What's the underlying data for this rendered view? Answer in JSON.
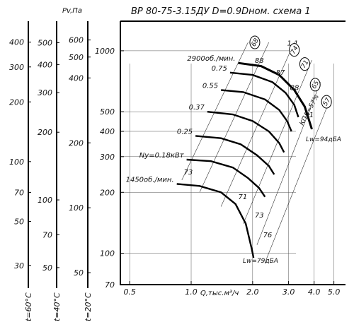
{
  "chart_data": {
    "type": "line",
    "title": "ВР 80-75-3.15ДУ D=0.9Dном. схема 1",
    "xlabel": "Q,тыс.м³/ч",
    "ylabel": "Pv,Па",
    "x_scale": "log",
    "y_scale": "log",
    "xlim": [
      0.45,
      5.7
    ],
    "ylim": [
      70,
      1400
    ],
    "x_ticks": [
      "0.5",
      "1.0",
      "2.0",
      "3.0",
      "4.0",
      "5.0"
    ],
    "y_ticks": [
      "70",
      "100",
      "200",
      "300",
      "400",
      "500",
      "1000"
    ],
    "side_axes": [
      {
        "label": "t=60°C",
        "ticks": [
          "30",
          "50",
          "70",
          "100",
          "200",
          "300",
          "400"
        ]
      },
      {
        "label": "t=40°C",
        "ticks": [
          "50",
          "70",
          "100",
          "200",
          "300",
          "400",
          "500"
        ]
      },
      {
        "label": "t=20°C",
        "ticks": [
          "50",
          "100",
          "200",
          "400",
          "500",
          "600"
        ]
      }
    ],
    "series": [
      {
        "name": "2900об./мин.",
        "points": [
          [
            1.7,
            870
          ],
          [
            2.2,
            840
          ],
          [
            2.7,
            760
          ],
          [
            3.2,
            640
          ],
          [
            3.6,
            530
          ],
          [
            3.9,
            410
          ]
        ]
      },
      {
        "name": "0.75",
        "points": [
          [
            1.55,
            780
          ],
          [
            2.0,
            760
          ],
          [
            2.5,
            700
          ],
          [
            2.9,
            620
          ],
          [
            3.2,
            540
          ],
          [
            3.35,
            470
          ]
        ]
      },
      {
        "name": "0.55",
        "points": [
          [
            1.4,
            640
          ],
          [
            1.8,
            625
          ],
          [
            2.3,
            575
          ],
          [
            2.7,
            510
          ],
          [
            2.95,
            450
          ],
          [
            3.1,
            400
          ]
        ]
      },
      {
        "name": "0.37",
        "points": [
          [
            1.2,
            500
          ],
          [
            1.6,
            485
          ],
          [
            2.0,
            450
          ],
          [
            2.4,
            400
          ],
          [
            2.7,
            350
          ],
          [
            2.85,
            315
          ]
        ]
      },
      {
        "name": "0.25",
        "points": [
          [
            1.05,
            380
          ],
          [
            1.4,
            370
          ],
          [
            1.75,
            345
          ],
          [
            2.1,
            305
          ],
          [
            2.4,
            270
          ],
          [
            2.55,
            245
          ]
        ]
      },
      {
        "name": "Ny=0.18кВт",
        "points": [
          [
            0.95,
            290
          ],
          [
            1.25,
            285
          ],
          [
            1.6,
            265
          ],
          [
            1.9,
            235
          ],
          [
            2.15,
            210
          ],
          [
            2.3,
            190
          ]
        ]
      },
      {
        "name": "1450об./мин.",
        "points": [
          [
            0.85,
            220
          ],
          [
            1.1,
            215
          ],
          [
            1.4,
            200
          ],
          [
            1.65,
            175
          ],
          [
            1.85,
            140
          ],
          [
            1.98,
            105
          ],
          [
            2.02,
            95
          ]
        ]
      }
    ],
    "efficiency_labels": [
      "73",
      "71",
      "73",
      "76",
      "88",
      "87",
      "88",
      "91",
      "1.1"
    ],
    "circled_labels": [
      "68",
      "74",
      "71",
      "65",
      "57"
    ],
    "kpd_label": "КПД=57%",
    "annotations": [
      "Lw=94дБА",
      "Lw=79дБА"
    ],
    "grid": true
  }
}
